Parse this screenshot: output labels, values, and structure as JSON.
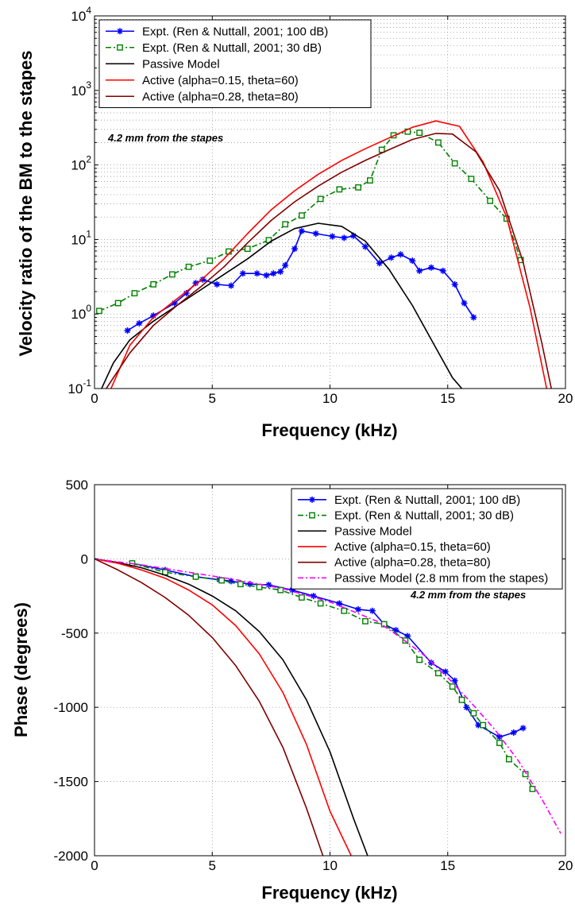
{
  "chart_data": [
    {
      "type": "line",
      "yscale": "log",
      "xlabel": "Frequency (kHz)",
      "ylabel": "Velocity ratio of the BM to the stapes",
      "xlim": [
        0,
        20
      ],
      "ylim": [
        0.1,
        10000
      ],
      "xticks": [
        0,
        5,
        10,
        15,
        20
      ],
      "yticks": [
        0.1,
        1,
        10,
        100,
        1000,
        10000
      ],
      "yticklabels": [
        {
          "base": "10",
          "exp": "-1"
        },
        {
          "base": "10",
          "exp": "0"
        },
        {
          "base": "10",
          "exp": "1"
        },
        {
          "base": "10",
          "exp": "2"
        },
        {
          "base": "10",
          "exp": "3"
        },
        {
          "base": "10",
          "exp": "4"
        }
      ],
      "grid": true,
      "legend_position": "top-left",
      "annotation": "4.2 mm from the stapes",
      "series": [
        {
          "name": "Expt. (Ren & Nuttall, 2001; 100 dB)",
          "color": "#0000ff",
          "style": "solid",
          "marker": "star",
          "x": [
            1.4,
            1.9,
            2.5,
            3.4,
            3.9,
            4.3,
            4.6,
            5.2,
            5.8,
            6.3,
            6.9,
            7.3,
            7.6,
            7.9,
            8.1,
            8.5,
            8.8,
            9.4,
            10.1,
            10.6,
            11.0,
            11.5,
            12.1,
            12.6,
            13.0,
            13.5,
            13.8,
            14.3,
            14.8,
            15.3,
            15.7,
            16.1
          ],
          "y": [
            0.6,
            0.75,
            0.95,
            1.4,
            1.9,
            2.6,
            2.9,
            2.5,
            2.4,
            3.5,
            3.5,
            3.3,
            3.5,
            3.7,
            4.5,
            7.5,
            13,
            12,
            11,
            10.5,
            11.2,
            8,
            4.8,
            5.7,
            6.3,
            5.2,
            3.8,
            4.2,
            3.8,
            2.5,
            1.4,
            0.9
          ]
        },
        {
          "name": "Expt. (Ren & Nuttall, 2001; 30 dB)",
          "color": "#008000",
          "style": "dashdot",
          "marker": "square",
          "x": [
            0.2,
            1.0,
            1.7,
            2.5,
            3.3,
            4.0,
            4.9,
            5.7,
            6.5,
            7.4,
            8.1,
            8.8,
            9.6,
            10.4,
            11.2,
            11.7,
            12.2,
            12.7,
            13.3,
            13.8,
            14.6,
            15.3,
            16.0,
            16.8,
            17.5,
            18.1
          ],
          "y": [
            1.1,
            1.4,
            1.9,
            2.5,
            3.4,
            4.3,
            5.2,
            6.9,
            7.5,
            9.8,
            16,
            21,
            35,
            47,
            50,
            62,
            160,
            250,
            280,
            270,
            200,
            105,
            65,
            33,
            19,
            5.3
          ]
        },
        {
          "name": "Passive Model",
          "color": "#000000",
          "style": "solid",
          "x": [
            0.3,
            0.8,
            1.5,
            2.5,
            3.5,
            4.5,
            5.5,
            6.5,
            7.5,
            8.5,
            9.5,
            10.5,
            11.5,
            12.5,
            13.5,
            14.5,
            15.2,
            15.6
          ],
          "y": [
            0.1,
            0.22,
            0.45,
            0.8,
            1.3,
            2.1,
            3.4,
            5.5,
            9.5,
            14,
            16.5,
            15,
            9.5,
            4,
            1.3,
            0.35,
            0.14,
            0.1
          ]
        },
        {
          "name": "Active (alpha=0.15, theta=60)",
          "color": "#ff0000",
          "style": "solid",
          "x": [
            0.7,
            1.5,
            2.5,
            3.5,
            4.5,
            5.5,
            6.5,
            7.5,
            8.5,
            9.5,
            10.5,
            11.5,
            12.5,
            13.5,
            14.5,
            15.5,
            16.5,
            17.5,
            18.5,
            19.2
          ],
          "y": [
            0.1,
            0.38,
            0.9,
            1.6,
            2.8,
            5.5,
            12,
            25,
            45,
            75,
            115,
            165,
            230,
            320,
            390,
            330,
            110,
            20,
            1.2,
            0.1
          ]
        },
        {
          "name": "Active (alpha=0.28, theta=80)",
          "color": "#800000",
          "style": "solid",
          "x": [
            0.5,
            1.5,
            2.5,
            3.5,
            4.5,
            5.5,
            6.5,
            7.5,
            8.5,
            9.5,
            10.5,
            11.5,
            12.5,
            13.5,
            14.5,
            15.2,
            16.2,
            17.2,
            18.2,
            19.0,
            19.4
          ],
          "y": [
            0.1,
            0.3,
            0.7,
            1.3,
            2.3,
            4.3,
            9,
            18,
            32,
            52,
            80,
            115,
            160,
            220,
            265,
            260,
            150,
            45,
            5,
            0.4,
            0.1
          ]
        }
      ]
    },
    {
      "type": "line",
      "xlabel": "Frequency (kHz)",
      "ylabel": "Phase (degrees)",
      "xlim": [
        0,
        20
      ],
      "ylim": [
        -2000,
        500
      ],
      "xticks": [
        0,
        5,
        10,
        15,
        20
      ],
      "yticks": [
        -2000,
        -1500,
        -1000,
        -500,
        0,
        500
      ],
      "grid": true,
      "legend_position": "top-right",
      "annotation": "4.2 mm from the stapes",
      "series": [
        {
          "name": "Expt. (Ren & Nuttall, 2001; 100 dB)",
          "color": "#0000ff",
          "style": "solid",
          "marker": "star",
          "x": [
            1.6,
            3.0,
            4.3,
            5.3,
            5.8,
            6.6,
            7.4,
            8.4,
            9.3,
            10.4,
            11.2,
            11.8,
            12.3,
            12.8,
            13.3,
            14.3,
            14.9,
            15.3,
            15.8,
            16.3,
            17.2,
            17.8,
            18.2
          ],
          "y": [
            -30,
            -75,
            -120,
            -140,
            -150,
            -170,
            -175,
            -210,
            -250,
            -300,
            -340,
            -350,
            -440,
            -480,
            -520,
            -700,
            -760,
            -820,
            -1000,
            -1120,
            -1200,
            -1170,
            -1140
          ]
        },
        {
          "name": "Expt. (Ren & Nuttall, 2001; 30 dB)",
          "color": "#008000",
          "style": "dashdot",
          "marker": "square",
          "x": [
            1.6,
            3.0,
            4.3,
            5.4,
            6.2,
            7.0,
            7.9,
            8.8,
            9.6,
            10.6,
            11.5,
            12.3,
            13.2,
            13.8,
            14.6,
            15.2,
            15.6,
            16.1,
            16.5,
            17.2,
            17.6,
            18.3,
            18.6
          ],
          "y": [
            -30,
            -90,
            -120,
            -145,
            -170,
            -190,
            -210,
            -260,
            -300,
            -350,
            -420,
            -440,
            -550,
            -680,
            -770,
            -860,
            -950,
            -1040,
            -1120,
            -1240,
            -1350,
            -1450,
            -1550
          ]
        },
        {
          "name": "Passive Model",
          "color": "#000000",
          "style": "solid",
          "x": [
            0,
            1,
            2,
            3,
            4,
            5,
            6,
            7,
            8,
            9,
            10,
            11,
            11.6
          ],
          "y": [
            0,
            -25,
            -60,
            -110,
            -170,
            -250,
            -350,
            -490,
            -680,
            -950,
            -1300,
            -1750,
            -2000
          ]
        },
        {
          "name": "Active (alpha=0.15, theta=60)",
          "color": "#ff0000",
          "style": "solid",
          "x": [
            0,
            1,
            2,
            3,
            4,
            5,
            6,
            7,
            8,
            9,
            10,
            10.9
          ],
          "y": [
            0,
            -30,
            -75,
            -130,
            -210,
            -310,
            -450,
            -640,
            -900,
            -1250,
            -1700,
            -2000
          ]
        },
        {
          "name": "Active (alpha=0.28, theta=80)",
          "color": "#800000",
          "style": "solid",
          "x": [
            0,
            1,
            2,
            3,
            4,
            5,
            6,
            7,
            8,
            9,
            9.7
          ],
          "y": [
            0,
            -75,
            -160,
            -260,
            -380,
            -530,
            -720,
            -960,
            -1270,
            -1680,
            -2000
          ]
        },
        {
          "name": "Passive Model (2.8 mm from the stapes)",
          "color": "#ff00ff",
          "style": "dashdot",
          "x": [
            0,
            2,
            4,
            6,
            8,
            10,
            12,
            13,
            14,
            15,
            16,
            17,
            18,
            19,
            19.8
          ],
          "y": [
            0,
            -40,
            -90,
            -140,
            -200,
            -290,
            -420,
            -530,
            -650,
            -800,
            -970,
            -1150,
            -1360,
            -1620,
            -1850
          ]
        }
      ]
    }
  ]
}
